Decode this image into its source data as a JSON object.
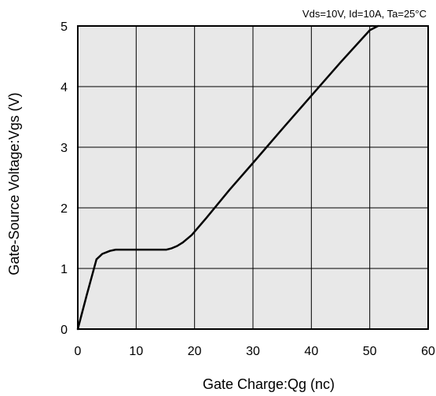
{
  "chart_data": {
    "type": "line",
    "title": "",
    "annotation": "Vds=10V, Id=10A, Ta=25°C",
    "xlabel": "Gate Charge:Qg  (nc)",
    "ylabel": "Gate-Source Voltage:Vgs  (V)",
    "xlim": [
      0,
      60
    ],
    "ylim": [
      0,
      5
    ],
    "xticks": [
      0,
      10,
      20,
      30,
      40,
      50,
      60
    ],
    "yticks": [
      0,
      1,
      2,
      3,
      4,
      5
    ],
    "grid": true,
    "colors": {
      "plot_bg": "#e8e8e8",
      "line": "#000000",
      "grid": "#000000"
    },
    "series": [
      {
        "x": [
          0,
          1.5,
          3.2,
          4.2,
          5.5,
          6.5,
          8,
          10,
          12,
          14,
          15.2,
          16,
          17,
          18,
          19.5,
          22,
          26,
          30,
          35,
          40,
          45,
          50,
          51.4
        ],
        "y": [
          0,
          0.55,
          1.15,
          1.24,
          1.29,
          1.31,
          1.31,
          1.31,
          1.31,
          1.31,
          1.31,
          1.33,
          1.37,
          1.43,
          1.55,
          1.83,
          2.3,
          2.74,
          3.3,
          3.85,
          4.4,
          4.93,
          5.0
        ]
      }
    ]
  }
}
